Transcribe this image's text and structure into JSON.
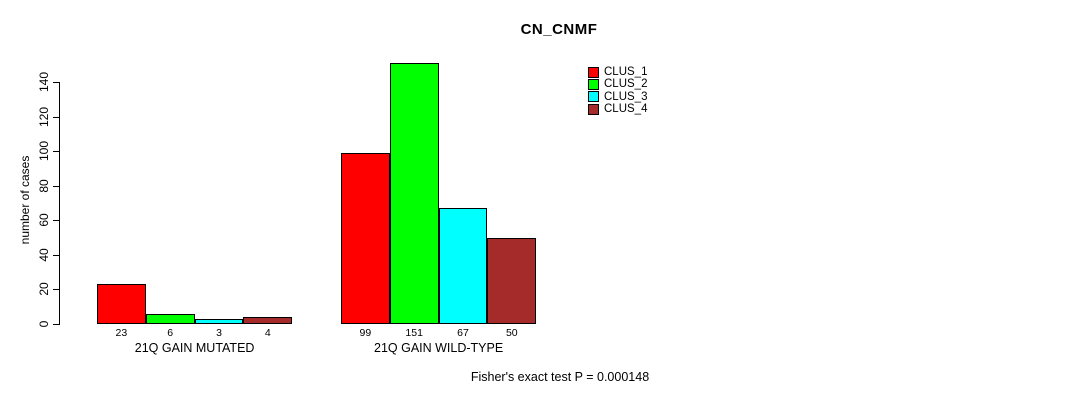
{
  "chart_data": {
    "type": "bar",
    "title": "CN_CNMF",
    "ylabel": "number of cases",
    "annotation": "Fisher's exact test P = 0.000148",
    "categories": [
      "21Q GAIN MUTATED",
      "21Q GAIN WILD-TYPE"
    ],
    "series": [
      {
        "name": "CLUS_1",
        "color": "#FF0000",
        "values": [
          23,
          99
        ]
      },
      {
        "name": "CLUS_2",
        "color": "#00FF00",
        "values": [
          6,
          151
        ]
      },
      {
        "name": "CLUS_3",
        "color": "#00FFFF",
        "values": [
          3,
          67
        ]
      },
      {
        "name": "CLUS_4",
        "color": "#A52A2A",
        "values": [
          4,
          50
        ]
      }
    ],
    "bar_value_labels": true,
    "yticks": [
      0,
      20,
      40,
      60,
      80,
      100,
      120,
      140
    ],
    "ylim": [
      0,
      140
    ],
    "grid": false,
    "legend_position": "top-right"
  }
}
